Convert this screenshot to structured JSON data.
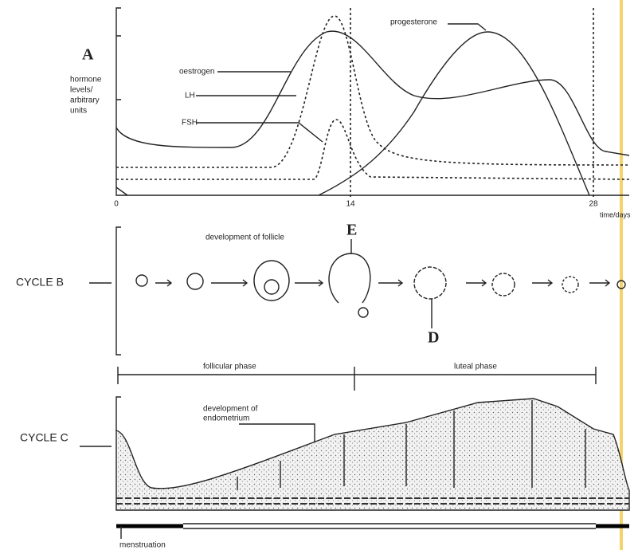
{
  "panel_a": {
    "label": "A",
    "y_axis_label": [
      "hormone",
      "levels/",
      "arbitrary",
      "units"
    ],
    "curves": [
      "oestrogen",
      "LH",
      "FSH",
      "progesterone"
    ],
    "x_ticks": [
      "0",
      "14",
      "28"
    ],
    "x_axis_label": "time/days"
  },
  "cycle_b": {
    "label": "CYCLE B",
    "annotation": "development of follicle",
    "markers": [
      "E",
      "D"
    ]
  },
  "phases": [
    "follicular phase",
    "luteal phase"
  ],
  "cycle_c": {
    "label": "CYCLE C",
    "annotation": [
      "development of",
      "endometrium"
    ],
    "bar_label": "menstruation"
  }
}
